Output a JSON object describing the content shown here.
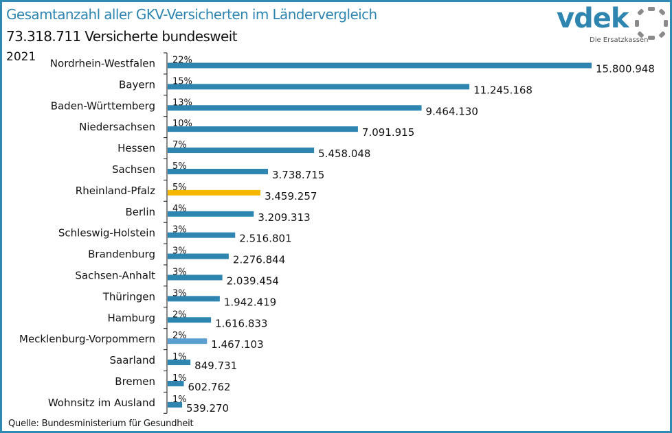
{
  "header": {
    "title": "Gesamtanzahl aller GKV-Versicherten im Ländervergleich",
    "subtitle": "73.318.711 Versicherte bundesweit",
    "year": "2021"
  },
  "logo": {
    "name": "vdek",
    "tagline": "Die Ersatzkassen"
  },
  "footer": {
    "source": "Quelle: Bundesministerium für Gesundheit"
  },
  "colors": {
    "bar_default": "#2e86b0",
    "bar_highlight": "#f5b800",
    "bar_secondary": "#5b9fd0",
    "title": "#2e86b0",
    "frame": "#2f8ab3"
  },
  "chart_data": {
    "type": "bar",
    "orientation": "horizontal",
    "title": "Gesamtanzahl aller GKV-Versicherten im Ländervergleich",
    "subtitle": "73.318.711 Versicherte bundesweit",
    "xlabel": "",
    "ylabel": "",
    "grid": false,
    "xlim": [
      0,
      16500000
    ],
    "categories": [
      "Nordrhein-Westfalen",
      "Bayern",
      "Baden-Württemberg",
      "Niedersachsen",
      "Hessen",
      "Sachsen",
      "Rheinland-Pfalz",
      "Berlin",
      "Schleswig-Holstein",
      "Brandenburg",
      "Sachsen-Anhalt",
      "Thüringen",
      "Hamburg",
      "Mecklenburg-Vorpommern",
      "Saarland",
      "Bremen",
      "Wohnsitz im Ausland"
    ],
    "values": [
      15800948,
      11245168,
      9464130,
      7091915,
      5458048,
      3738715,
      3459257,
      3209313,
      2516801,
      2276844,
      2039454,
      1942419,
      1616833,
      1467103,
      849731,
      602762,
      539270
    ],
    "value_labels": [
      "15.800.948",
      "11.245.168",
      "9.464.130",
      "7.091.915",
      "5.458.048",
      "3.738.715",
      "3.459.257",
      "3.209.313",
      "2.516.801",
      "2.276.844",
      "2.039.454",
      "1.942.419",
      "1.616.833",
      "1.467.103",
      "849.731",
      "602.762",
      "539.270"
    ],
    "percent_labels": [
      "22%",
      "15%",
      "13%",
      "10%",
      "7%",
      "5%",
      "5%",
      "4%",
      "3%",
      "3%",
      "3%",
      "3%",
      "2%",
      "2%",
      "1%",
      "1%",
      "1%"
    ],
    "bar_colors": [
      "#2e86b0",
      "#2e86b0",
      "#2e86b0",
      "#2e86b0",
      "#2e86b0",
      "#2e86b0",
      "#f5b800",
      "#2e86b0",
      "#2e86b0",
      "#2e86b0",
      "#2e86b0",
      "#2e86b0",
      "#2e86b0",
      "#5b9fd0",
      "#2e86b0",
      "#2e86b0",
      "#2e86b0"
    ],
    "source": "Quelle: Bundesministerium für Gesundheit"
  }
}
